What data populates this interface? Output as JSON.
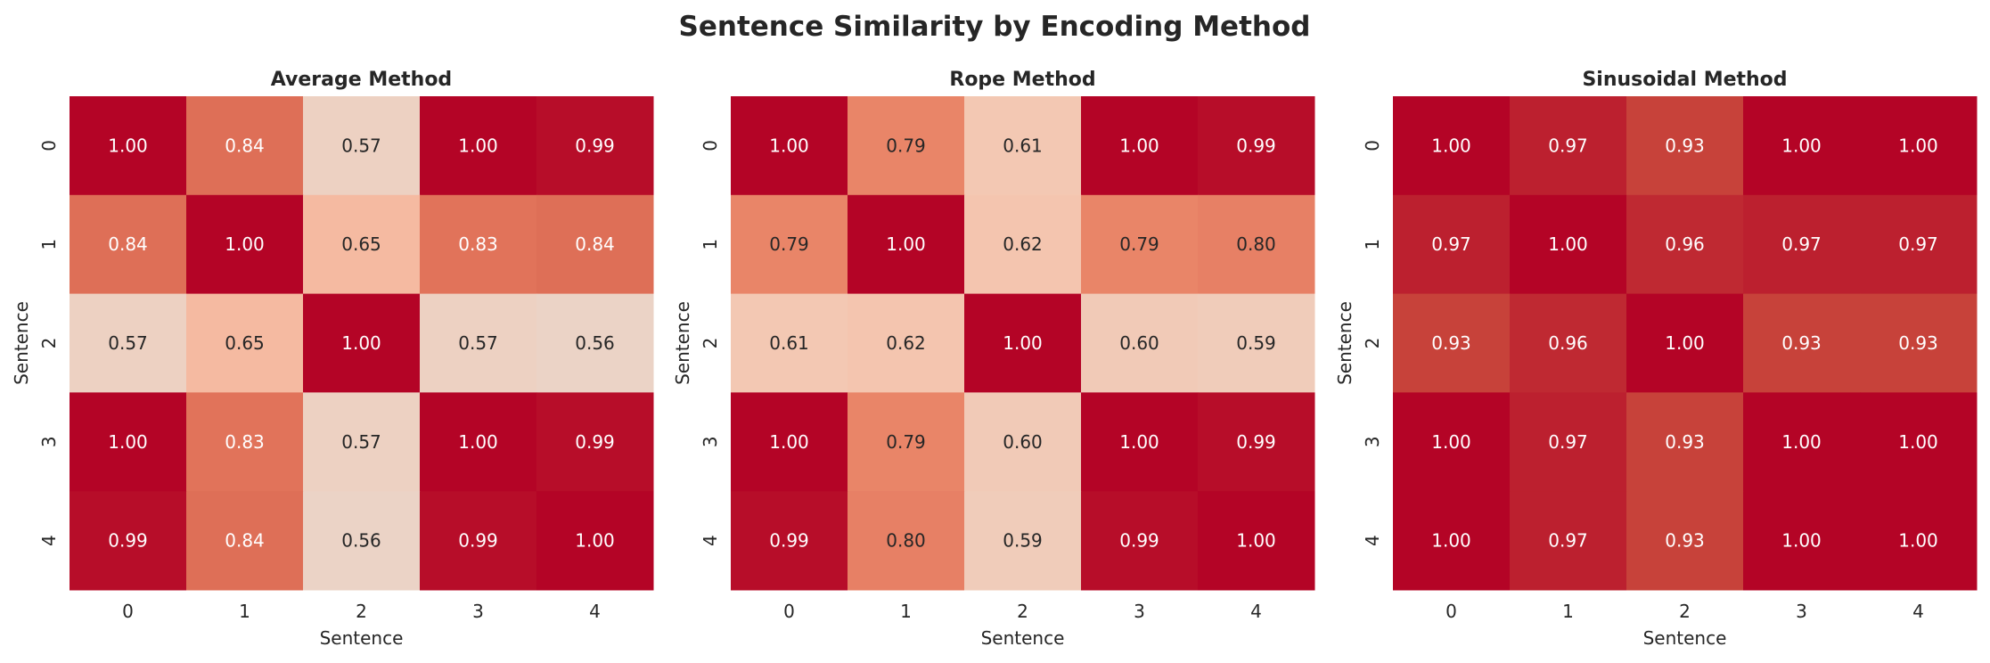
{
  "title": "Sentence Similarity by Encoding Method",
  "chart_data": [
    {
      "type": "heatmap",
      "title": "Average Method",
      "xlabel": "Sentence",
      "ylabel": "Sentence",
      "x_ticks": [
        "0",
        "1",
        "2",
        "3",
        "4"
      ],
      "y_ticks": [
        "0",
        "1",
        "2",
        "3",
        "4"
      ],
      "colormap": "coolwarm",
      "vlim": [
        0,
        1
      ],
      "colorbar": false,
      "values": [
        [
          1.0,
          0.84,
          0.57,
          1.0,
          0.99
        ],
        [
          0.84,
          1.0,
          0.65,
          0.83,
          0.84
        ],
        [
          0.57,
          0.65,
          1.0,
          0.57,
          0.56
        ],
        [
          1.0,
          0.83,
          0.57,
          1.0,
          0.99
        ],
        [
          0.99,
          0.84,
          0.56,
          0.99,
          1.0
        ]
      ]
    },
    {
      "type": "heatmap",
      "title": "Rope Method",
      "xlabel": "Sentence",
      "ylabel": "Sentence",
      "x_ticks": [
        "0",
        "1",
        "2",
        "3",
        "4"
      ],
      "y_ticks": [
        "0",
        "1",
        "2",
        "3",
        "4"
      ],
      "colormap": "coolwarm",
      "vlim": [
        0,
        1
      ],
      "colorbar": false,
      "values": [
        [
          1.0,
          0.79,
          0.61,
          1.0,
          0.99
        ],
        [
          0.79,
          1.0,
          0.62,
          0.79,
          0.8
        ],
        [
          0.61,
          0.62,
          1.0,
          0.6,
          0.59
        ],
        [
          1.0,
          0.79,
          0.6,
          1.0,
          0.99
        ],
        [
          0.99,
          0.8,
          0.59,
          0.99,
          1.0
        ]
      ]
    },
    {
      "type": "heatmap",
      "title": "Sinusoidal Method",
      "xlabel": "Sentence",
      "ylabel": "Sentence",
      "x_ticks": [
        "0",
        "1",
        "2",
        "3",
        "4"
      ],
      "y_ticks": [
        "0",
        "1",
        "2",
        "3",
        "4"
      ],
      "colormap": "coolwarm",
      "vlim": [
        0,
        1
      ],
      "colorbar": false,
      "values": [
        [
          1.0,
          0.97,
          0.93,
          1.0,
          1.0
        ],
        [
          0.97,
          1.0,
          0.96,
          0.97,
          0.97
        ],
        [
          0.93,
          0.96,
          1.0,
          0.93,
          0.93
        ],
        [
          1.0,
          0.97,
          0.93,
          1.0,
          1.0
        ],
        [
          1.0,
          0.97,
          0.93,
          1.0,
          1.0
        ]
      ]
    }
  ]
}
